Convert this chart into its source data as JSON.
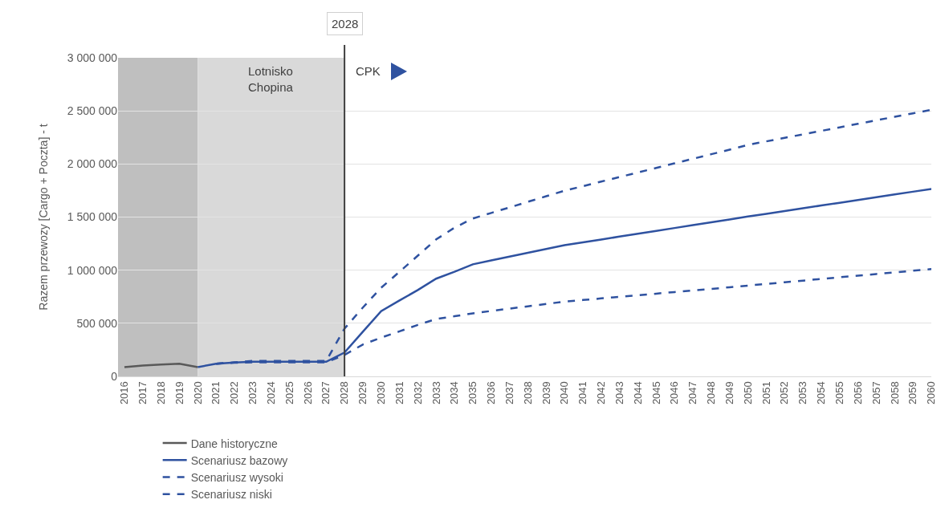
{
  "chart_data": {
    "type": "line",
    "ylabel": "Razem przewozy [Cargo + Poczta] - t",
    "categories": [
      "2016",
      "2017",
      "2018",
      "2019",
      "2020",
      "2021",
      "2022",
      "2023",
      "2024",
      "2025",
      "2026",
      "2027",
      "2028",
      "2029",
      "2030",
      "2031",
      "2032",
      "2033",
      "2034",
      "2035",
      "2036",
      "2037",
      "2038",
      "2039",
      "2040",
      "2041",
      "2042",
      "2043",
      "2044",
      "2045",
      "2046",
      "2047",
      "2048",
      "2049",
      "2050",
      "2051",
      "2052",
      "2053",
      "2054",
      "2055",
      "2056",
      "2057",
      "2058",
      "2059",
      "2060"
    ],
    "series": [
      {
        "name": "Dane historyczne",
        "color": "#595959",
        "line_style": "solid",
        "values": [
          87000,
          102000,
          111000,
          119000,
          87000,
          null,
          null,
          null,
          null,
          null,
          null,
          null,
          null,
          null,
          null,
          null,
          null,
          null,
          null,
          null,
          null,
          null,
          null,
          null,
          null,
          null,
          null,
          null,
          null,
          null,
          null,
          null,
          null,
          null,
          null,
          null,
          null,
          null,
          null,
          null,
          null,
          null,
          null,
          null,
          null
        ]
      },
      {
        "name": "Scenariusz bazowy",
        "color": "#2f52a0",
        "line_style": "solid",
        "values": [
          null,
          null,
          null,
          null,
          87000,
          119000,
          130000,
          137000,
          137000,
          137000,
          137000,
          137000,
          224000,
          420000,
          615000,
          715000,
          813000,
          920000,
          985000,
          1055000,
          1092000,
          1128000,
          1164000,
          1200000,
          1235000,
          1262000,
          1289000,
          1316000,
          1343000,
          1370000,
          1397000,
          1424000,
          1451000,
          1478000,
          1505000,
          1531000,
          1557000,
          1583000,
          1609000,
          1635000,
          1661000,
          1687000,
          1713000,
          1739000,
          1765000
        ]
      },
      {
        "name": "Scenariusz wysoki",
        "color": "#2f52a0",
        "line_style": "dashed",
        "values": [
          null,
          null,
          null,
          null,
          null,
          119000,
          132000,
          145000,
          145000,
          145000,
          145000,
          145000,
          450000,
          648000,
          835000,
          985000,
          1137000,
          1290000,
          1400000,
          1487000,
          1539000,
          1591000,
          1644000,
          1696000,
          1748000,
          1791000,
          1834000,
          1877000,
          1920000,
          1963000,
          2006000,
          2049000,
          2092000,
          2135000,
          2180000,
          2213000,
          2246000,
          2279000,
          2312000,
          2345000,
          2378000,
          2411000,
          2444000,
          2477000,
          2510000
        ]
      },
      {
        "name": "Scenariusz niski",
        "color": "#2f52a0",
        "line_style": "dashed",
        "values": [
          null,
          null,
          null,
          null,
          null,
          119000,
          128000,
          133000,
          133000,
          133000,
          133000,
          133000,
          202000,
          300000,
          365000,
          424000,
          485000,
          540000,
          566000,
          593000,
          616000,
          638000,
          660000,
          682000,
          704000,
          719000,
          734000,
          749000,
          764000,
          779000,
          794000,
          809000,
          824000,
          839000,
          855000,
          871000,
          886000,
          902000,
          917000,
          933000,
          948000,
          964000,
          979000,
          995000,
          1010000
        ]
      }
    ],
    "ylim": [
      0,
      3000000
    ],
    "yticks": [
      0,
      {
        "value": 500000,
        "label": "500 000"
      },
      {
        "value": 1000000,
        "label": "1 000 000"
      },
      {
        "value": 1500000,
        "label": "1 500 000"
      },
      {
        "value": 2000000,
        "label": "2 000 000"
      },
      {
        "value": 2500000,
        "label": "2 500 000"
      },
      {
        "value": 3000000,
        "label": "3 000 000"
      }
    ],
    "bands": [
      {
        "axis": "x",
        "from": "2016",
        "to": "2020",
        "label": null,
        "color": "#bfbfbf"
      },
      {
        "axis": "x",
        "from": "2020",
        "to": "2028",
        "label": "Lotnisko\nChopina",
        "color": "#d9d9d9"
      }
    ],
    "ref_lines": [
      {
        "axis": "x",
        "value": "2028",
        "label": "2028",
        "color": "#404040",
        "line_style": "solid"
      }
    ],
    "annotations": [
      "CPK"
    ],
    "grid": "y",
    "legend": "bottom",
    "marker": "none"
  }
}
